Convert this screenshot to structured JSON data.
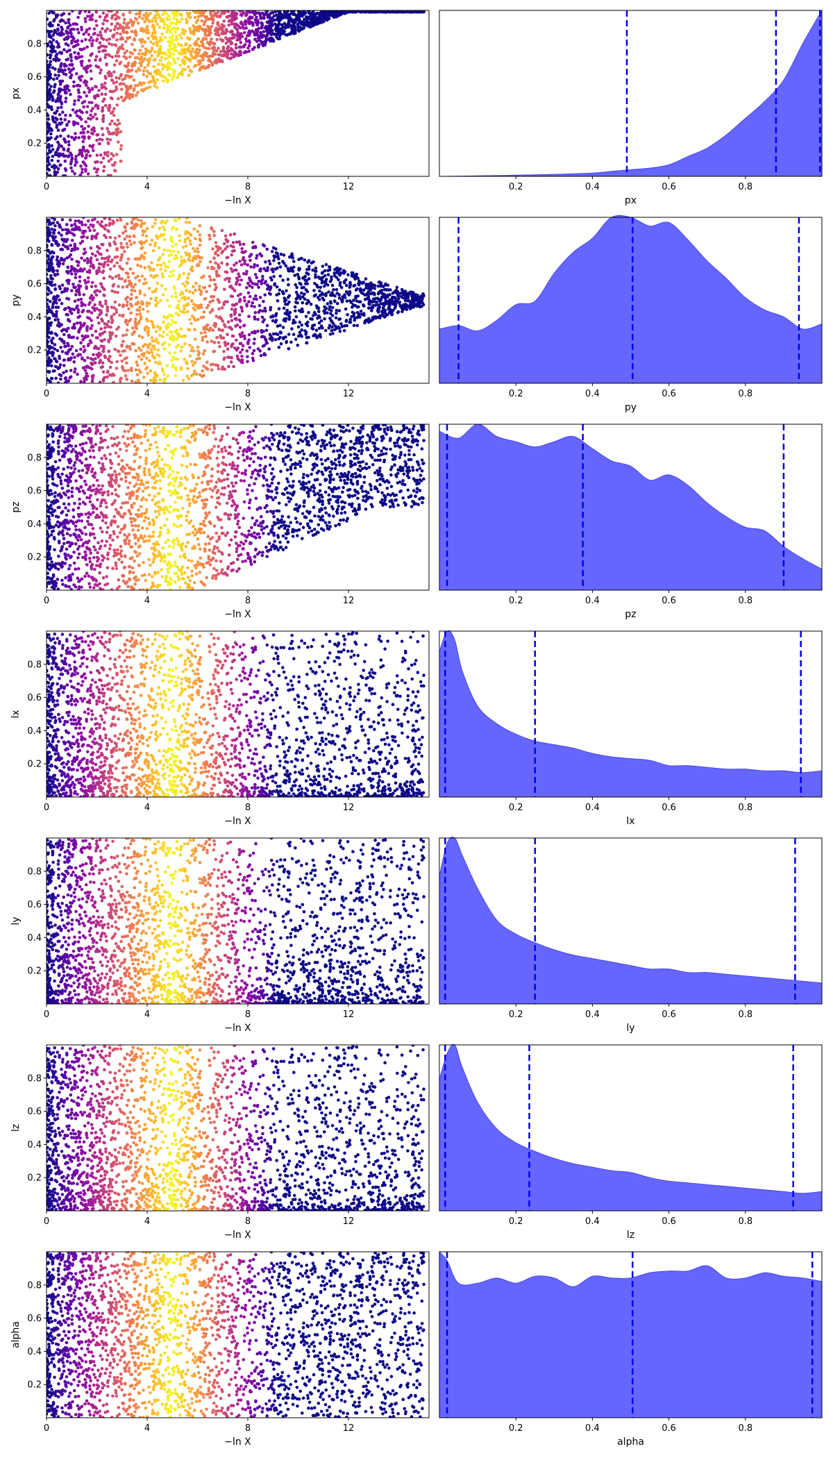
{
  "chart_data": {
    "type": "scatter",
    "trace_xlabel": "−ln X",
    "trace_xticks": [
      "0",
      "4",
      "8",
      "12"
    ],
    "trace_xlim": [
      0,
      15.2
    ],
    "ylim": [
      0,
      1
    ],
    "yticks": [
      "0.2",
      "0.4",
      "0.6",
      "0.8"
    ],
    "posterior_xticks": [
      "0.2",
      "0.4",
      "0.6",
      "0.8"
    ],
    "posterior_xlim": [
      0,
      1
    ],
    "colormap": "plasma",
    "posterior_fill_color": "#6666ff",
    "quantile_line_color": "#0000ee",
    "params": [
      {
        "label": "px",
        "quantiles": [
          0.49,
          0.88,
          0.995
        ],
        "kde_x": [
          0,
          0.1,
          0.2,
          0.3,
          0.4,
          0.45,
          0.5,
          0.55,
          0.6,
          0.65,
          0.7,
          0.75,
          0.8,
          0.85,
          0.9,
          0.95,
          1.0
        ],
        "kde_y": [
          0.0,
          0.003,
          0.007,
          0.012,
          0.02,
          0.03,
          0.04,
          0.05,
          0.07,
          0.12,
          0.17,
          0.25,
          0.35,
          0.45,
          0.58,
          0.8,
          1.0
        ]
      },
      {
        "label": "py",
        "quantiles": [
          0.05,
          0.505,
          0.94
        ],
        "kde_x": [
          0,
          0.05,
          0.1,
          0.15,
          0.2,
          0.25,
          0.3,
          0.35,
          0.4,
          0.45,
          0.5,
          0.55,
          0.6,
          0.65,
          0.7,
          0.75,
          0.8,
          0.85,
          0.9,
          0.95,
          1.0
        ],
        "kde_y": [
          0.31,
          0.33,
          0.3,
          0.36,
          0.45,
          0.47,
          0.63,
          0.75,
          0.83,
          0.95,
          0.95,
          0.9,
          0.92,
          0.82,
          0.7,
          0.6,
          0.49,
          0.42,
          0.38,
          0.31,
          0.34
        ]
      },
      {
        "label": "pz",
        "quantiles": [
          0.02,
          0.375,
          0.9
        ],
        "kde_x": [
          0,
          0.05,
          0.1,
          0.15,
          0.2,
          0.25,
          0.3,
          0.35,
          0.4,
          0.45,
          0.5,
          0.55,
          0.6,
          0.65,
          0.7,
          0.75,
          0.8,
          0.85,
          0.9,
          0.95,
          1.0
        ],
        "kde_y": [
          0.91,
          0.87,
          0.95,
          0.88,
          0.85,
          0.82,
          0.85,
          0.88,
          0.81,
          0.74,
          0.71,
          0.63,
          0.66,
          0.6,
          0.5,
          0.42,
          0.36,
          0.34,
          0.25,
          0.18,
          0.12
        ]
      },
      {
        "label": "lx",
        "quantiles": [
          0.015,
          0.25,
          0.945
        ],
        "kde_x": [
          0,
          0.02,
          0.04,
          0.06,
          0.1,
          0.15,
          0.2,
          0.25,
          0.3,
          0.35,
          0.4,
          0.45,
          0.5,
          0.55,
          0.6,
          0.65,
          0.7,
          0.75,
          0.8,
          0.85,
          0.9,
          0.95,
          1.0
        ],
        "kde_y": [
          0.83,
          0.95,
          0.9,
          0.72,
          0.52,
          0.42,
          0.36,
          0.32,
          0.3,
          0.28,
          0.25,
          0.23,
          0.22,
          0.21,
          0.18,
          0.18,
          0.17,
          0.16,
          0.16,
          0.15,
          0.15,
          0.14,
          0.15
        ]
      },
      {
        "label": "ly",
        "quantiles": [
          0.015,
          0.25,
          0.93
        ],
        "kde_x": [
          0,
          0.02,
          0.04,
          0.06,
          0.1,
          0.15,
          0.2,
          0.25,
          0.3,
          0.35,
          0.4,
          0.45,
          0.5,
          0.55,
          0.6,
          0.65,
          0.7,
          0.75,
          0.8,
          0.85,
          0.9,
          0.95,
          1.0
        ],
        "kde_y": [
          0.73,
          0.92,
          0.95,
          0.85,
          0.66,
          0.48,
          0.4,
          0.35,
          0.31,
          0.28,
          0.26,
          0.24,
          0.22,
          0.2,
          0.2,
          0.18,
          0.18,
          0.17,
          0.16,
          0.15,
          0.14,
          0.13,
          0.12
        ]
      },
      {
        "label": "lz",
        "quantiles": [
          0.015,
          0.235,
          0.925
        ],
        "kde_x": [
          0,
          0.02,
          0.04,
          0.06,
          0.1,
          0.15,
          0.2,
          0.25,
          0.3,
          0.35,
          0.4,
          0.45,
          0.5,
          0.55,
          0.6,
          0.65,
          0.7,
          0.75,
          0.8,
          0.85,
          0.9,
          0.95,
          1.0
        ],
        "kde_y": [
          0.75,
          0.9,
          0.95,
          0.82,
          0.62,
          0.47,
          0.39,
          0.34,
          0.3,
          0.27,
          0.25,
          0.23,
          0.22,
          0.19,
          0.17,
          0.16,
          0.15,
          0.14,
          0.13,
          0.12,
          0.11,
          0.1,
          0.11
        ]
      },
      {
        "label": "alpha",
        "quantiles": [
          0.02,
          0.505,
          0.975
        ],
        "kde_x": [
          0,
          0.02,
          0.05,
          0.1,
          0.15,
          0.2,
          0.25,
          0.3,
          0.35,
          0.4,
          0.45,
          0.5,
          0.55,
          0.6,
          0.65,
          0.7,
          0.75,
          0.8,
          0.85,
          0.9,
          0.95,
          1.0
        ],
        "kde_y": [
          0.95,
          0.9,
          0.77,
          0.77,
          0.8,
          0.77,
          0.81,
          0.8,
          0.75,
          0.81,
          0.8,
          0.8,
          0.83,
          0.84,
          0.84,
          0.87,
          0.8,
          0.8,
          0.83,
          0.81,
          0.8,
          0.78
        ]
      }
    ]
  }
}
